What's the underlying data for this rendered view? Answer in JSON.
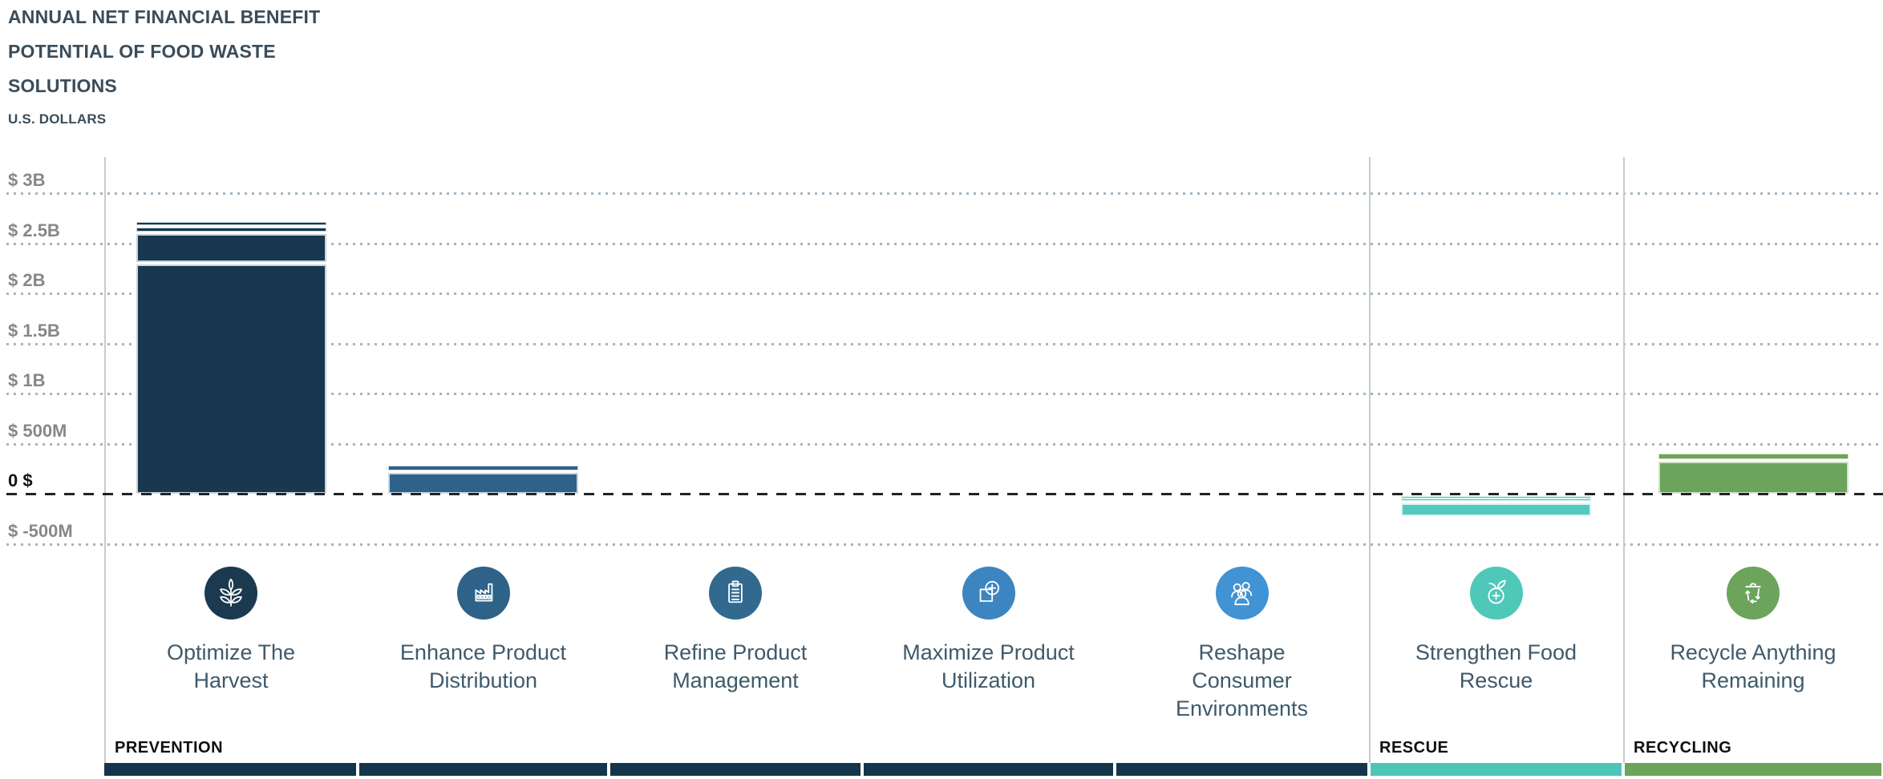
{
  "title": {
    "line1": "ANNUAL NET FINANCIAL BENEFIT",
    "line2": "POTENTIAL OF FOOD WASTE",
    "line3": "SOLUTIONS",
    "subtitle": "U.S. DOLLARS"
  },
  "chart_data": {
    "type": "bar",
    "stacked": true,
    "title": "Annual Net Financial Benefit Potential of Food Waste Solutions",
    "ylabel": "U.S. DOLLARS",
    "unit": "USD (millions)",
    "ylim": [
      -500,
      3000
    ],
    "grid": "dotted horizontal lines, dashed black zero line",
    "yticks": [
      {
        "label": "$ 3B",
        "value": 3000
      },
      {
        "label": "$ 2.5B",
        "value": 2500
      },
      {
        "label": "$ 2B",
        "value": 2000
      },
      {
        "label": "$ 1.5B",
        "value": 1500
      },
      {
        "label": "$ 1B",
        "value": 1000
      },
      {
        "label": "$ 500M",
        "value": 500
      },
      {
        "label": "0 $",
        "value": 0
      },
      {
        "label": "$ -500M",
        "value": -500
      }
    ],
    "categories": [
      {
        "label": "Optimize The Harvest",
        "label_lines": [
          "Optimize The",
          "Harvest"
        ],
        "group": "PREVENTION",
        "icon": "plant-icon",
        "bar_color": "#17384E",
        "segment_border_color": "#C9D4DC",
        "icon_color": "#1B3A50",
        "segments_musd": [
          50,
          70,
          300,
          2290
        ],
        "total_musd": 2710
      },
      {
        "label": "Enhance Product Distribution",
        "label_lines": [
          "Enhance Product",
          "Distribution"
        ],
        "group": "PREVENTION",
        "icon": "factory-icon",
        "bar_color": "#2E6289",
        "segment_border_color": "#C8D7E2",
        "icon_color": "#2E6288",
        "segments_musd": [
          70,
          210
        ],
        "total_musd": 280
      },
      {
        "label": "Refine Product Management",
        "label_lines": [
          "Refine Product",
          "Management"
        ],
        "group": "PREVENTION",
        "icon": "clipboard-icon",
        "bar_color": "#336B91",
        "segment_border_color": "#C8D7E2",
        "icon_color": "#32698F",
        "segments_musd": [],
        "total_musd": 0
      },
      {
        "label": "Maximize Product Utilization",
        "label_lines": [
          "Maximize Product",
          "Utilization"
        ],
        "group": "PREVENTION",
        "icon": "box-plus-icon",
        "bar_color": "#3F8AC2",
        "segment_border_color": "#CDDEEC",
        "icon_color": "#3D85C1",
        "segments_musd": [],
        "total_musd": 0
      },
      {
        "label": "Reshape Consumer Environments",
        "label_lines": [
          "Reshape",
          "Consumer",
          "Environments"
        ],
        "group": "PREVENTION",
        "icon": "people-icon",
        "bar_color": "#4495D4",
        "segment_border_color": "#CDDEEC",
        "icon_color": "#4193D3",
        "segments_musd": [],
        "total_musd": 0
      },
      {
        "label": "Strengthen Food Rescue",
        "label_lines": [
          "Strengthen Food",
          "Rescue"
        ],
        "group": "RESCUE",
        "icon": "apple-plus-icon",
        "bar_color": "#52CABD",
        "segment_border_color": "#D9F4F0",
        "icon_color": "#4FC8BA",
        "segments_musd": [
          -20,
          -50,
          -130
        ],
        "total_musd": -200
      },
      {
        "label": "Recycle Anything Remaining",
        "label_lines": [
          "Recycle Anything",
          "Remaining"
        ],
        "group": "RECYCLING",
        "icon": "recycle-bin-icon",
        "bar_color": "#6CA45B",
        "segment_border_color": "#D2E5C8",
        "icon_color": "#6BA45A",
        "segments_musd": [
          80,
          320
        ],
        "total_musd": 400
      }
    ],
    "groups": [
      {
        "label": "PREVENTION",
        "color": "#14364D"
      },
      {
        "label": "RESCUE",
        "color": "#4EC5B9"
      },
      {
        "label": "RECYCLING",
        "color": "#6BA45A"
      }
    ],
    "legend_position": "none"
  }
}
